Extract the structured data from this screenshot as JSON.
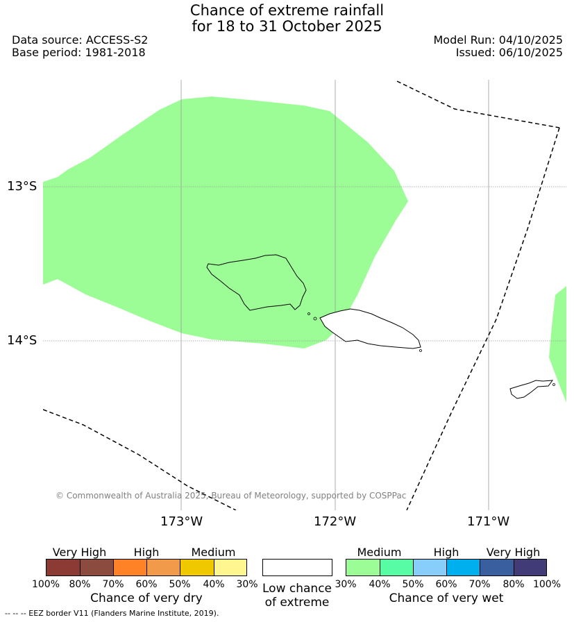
{
  "title_line1": "Chance of extreme rainfall",
  "title_line2": "for 18 to 31 October 2025",
  "data_source": "Data source: ACCESS-S2",
  "base_period": "Base period: 1981-2018",
  "model_run": "Model Run: 04/10/2025",
  "issued": "Issued: 06/10/2025",
  "lat_labels": [
    "13°S",
    "14°S"
  ],
  "lon_labels": [
    "173°W",
    "172°W",
    "171°W"
  ],
  "copyright": "© Commonwealth of Australia 2025, Bureau of Meteorology, supported by COSPPac",
  "footer": "--  --  -- EEZ border V11 (Flanders Marine Institute, 2019).",
  "legend": {
    "dry": {
      "categories": [
        "Very High",
        "High",
        "Medium"
      ],
      "ticks": [
        "100%",
        "80%",
        "70%",
        "60%",
        "50%",
        "40%",
        "30%"
      ],
      "label": "Chance of very dry",
      "colors": [
        "#8b3a34",
        "#8b4c3f",
        "#ff8226",
        "#f09a4a",
        "#f0c800",
        "#fff68f"
      ]
    },
    "low": {
      "line1": "Low chance",
      "line2": "of extreme",
      "color": "#ffffff"
    },
    "wet": {
      "categories": [
        "Medium",
        "High",
        "Very High"
      ],
      "ticks": [
        "30%",
        "40%",
        "50%",
        "60%",
        "70%",
        "80%",
        "100%"
      ],
      "label": "Chance of very wet",
      "colors": [
        "#9cfd96",
        "#58fca4",
        "#87cefa",
        "#00b0ee",
        "#3a5f9f",
        "#413b78"
      ]
    }
  },
  "map_colors": {
    "wet_medium": "#9cfd96"
  }
}
